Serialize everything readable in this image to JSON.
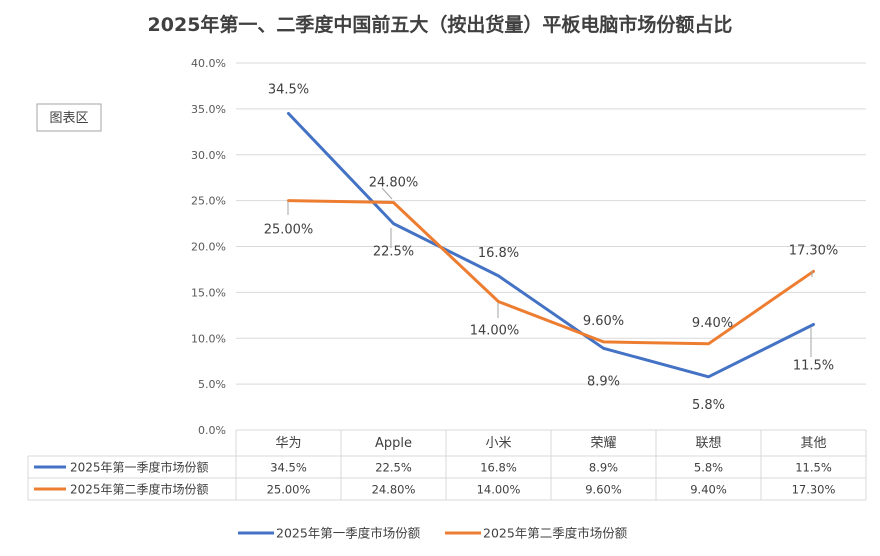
{
  "chart_data": {
    "type": "line",
    "title": "2025年第一、二季度中国前五大（按出货量）平板电脑市场份额占比",
    "categories": [
      "华为",
      "Apple",
      "小米",
      "荣耀",
      "联想",
      "其他"
    ],
    "y_ticks": [
      "0.0%",
      "5.0%",
      "10.0%",
      "15.0%",
      "20.0%",
      "25.0%",
      "30.0%",
      "35.0%",
      "40.0%"
    ],
    "ylim": [
      0,
      40
    ],
    "grid": true,
    "legend": "bottom",
    "data_table": true,
    "series": [
      {
        "name": "2025年第一季度市场份额",
        "color": "#4472C4",
        "values": [
          34.5,
          22.5,
          16.8,
          8.9,
          5.8,
          11.5
        ],
        "labels": [
          "34.5%",
          "22.5%",
          "16.8%",
          "8.9%",
          "5.8%",
          "11.5%"
        ]
      },
      {
        "name": "2025年第二季度市场份额",
        "color": "#ED7D31",
        "values": [
          25.0,
          24.8,
          14.0,
          9.6,
          9.4,
          17.3
        ],
        "labels": [
          "25.00%",
          "24.80%",
          "14.00%",
          "9.60%",
          "9.40%",
          "17.30%"
        ]
      }
    ]
  },
  "ui": {
    "chart_area_label": "图表区"
  }
}
